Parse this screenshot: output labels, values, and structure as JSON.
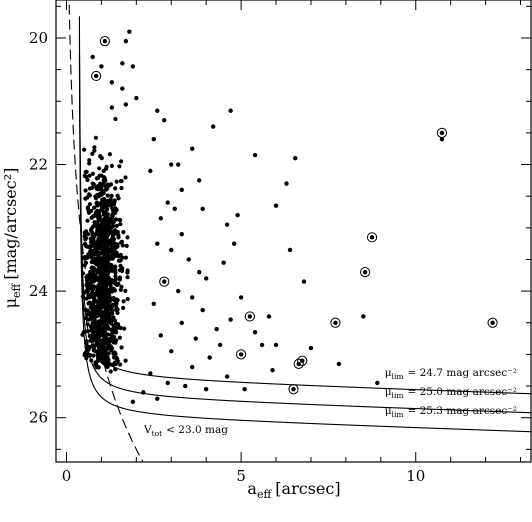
{
  "chart_data": {
    "type": "scatter",
    "title": "",
    "xlabel": "a",
    "xlabel_sub": "eff",
    "xlabel_unit": "[arcsec]",
    "ylabel": "μ",
    "ylabel_sub": "eff",
    "ylabel_unit": "[mag/arcsec²]",
    "xlim": [
      -0.3,
      13.3
    ],
    "ylim": [
      26.7,
      19.4
    ],
    "y_inverted": true,
    "grid": false,
    "x_major_ticks": [
      0,
      5,
      10
    ],
    "x_tick_labels": [
      "0",
      "5",
      "10"
    ],
    "x_minor_step": 1,
    "y_major_ticks": [
      20,
      22,
      24,
      26
    ],
    "y_tick_labels": [
      "20",
      "22",
      "24",
      "26"
    ],
    "y_minor_step": 0.5,
    "marker_color": "#000000",
    "curves": [
      {
        "style": "solid",
        "kind": "mu_lim",
        "value": 24.7,
        "label": "μ",
        "label_sub": "lim",
        "label_rest": "= 24.7 mag arcsec⁻²"
      },
      {
        "style": "solid",
        "kind": "mu_lim",
        "value": 25.0,
        "label": "μ",
        "label_sub": "lim",
        "label_rest": "= 25.0 mag arcsec⁻²"
      },
      {
        "style": "solid",
        "kind": "mu_lim",
        "value": 25.3,
        "label": "μ",
        "label_sub": "lim",
        "label_rest": "= 25.3 mag arcsec⁻²"
      },
      {
        "style": "dashed",
        "kind": "v_tot",
        "value": 23.0,
        "label": "V",
        "label_sub": "tot",
        "label_rest": "< 23.0 mag"
      }
    ],
    "circled_points": [
      {
        "x": 1.1,
        "y": 20.05
      },
      {
        "x": 0.85,
        "y": 20.6
      },
      {
        "x": 10.75,
        "y": 21.5
      },
      {
        "x": 8.75,
        "y": 23.15
      },
      {
        "x": 8.55,
        "y": 23.7
      },
      {
        "x": 2.8,
        "y": 23.85
      },
      {
        "x": 5.25,
        "y": 24.4
      },
      {
        "x": 7.7,
        "y": 24.5
      },
      {
        "x": 12.2,
        "y": 24.5
      },
      {
        "x": 5.0,
        "y": 25.0
      },
      {
        "x": 6.75,
        "y": 25.1
      },
      {
        "x": 6.65,
        "y": 25.15
      },
      {
        "x": 6.5,
        "y": 25.55
      }
    ],
    "sparse_points": [
      {
        "x": 1.8,
        "y": 19.9
      },
      {
        "x": 1.7,
        "y": 20.05
      },
      {
        "x": 1.6,
        "y": 20.4
      },
      {
        "x": 0.75,
        "y": 20.3
      },
      {
        "x": 1.0,
        "y": 20.45
      },
      {
        "x": 1.9,
        "y": 20.45
      },
      {
        "x": 1.3,
        "y": 20.7
      },
      {
        "x": 1.6,
        "y": 20.8
      },
      {
        "x": 2.0,
        "y": 20.95
      },
      {
        "x": 1.7,
        "y": 21.05
      },
      {
        "x": 1.3,
        "y": 21.1
      },
      {
        "x": 2.6,
        "y": 21.15
      },
      {
        "x": 4.7,
        "y": 21.15
      },
      {
        "x": 2.8,
        "y": 21.3
      },
      {
        "x": 4.2,
        "y": 21.4
      },
      {
        "x": 10.75,
        "y": 21.6
      },
      {
        "x": 2.5,
        "y": 21.6
      },
      {
        "x": 3.6,
        "y": 21.75
      },
      {
        "x": 5.4,
        "y": 21.85
      },
      {
        "x": 6.55,
        "y": 21.9
      },
      {
        "x": 3.2,
        "y": 22.0
      },
      {
        "x": 3.0,
        "y": 22.0
      },
      {
        "x": 2.4,
        "y": 22.1
      },
      {
        "x": 3.8,
        "y": 22.25
      },
      {
        "x": 6.3,
        "y": 22.3
      },
      {
        "x": 3.3,
        "y": 22.4
      },
      {
        "x": 2.9,
        "y": 22.6
      },
      {
        "x": 3.1,
        "y": 22.7
      },
      {
        "x": 3.9,
        "y": 22.7
      },
      {
        "x": 6.0,
        "y": 22.65
      },
      {
        "x": 2.7,
        "y": 22.85
      },
      {
        "x": 4.9,
        "y": 22.8
      },
      {
        "x": 3.3,
        "y": 23.1
      },
      {
        "x": 4.6,
        "y": 22.95
      },
      {
        "x": 2.6,
        "y": 23.25
      },
      {
        "x": 4.8,
        "y": 23.25
      },
      {
        "x": 3.0,
        "y": 23.35
      },
      {
        "x": 6.4,
        "y": 23.35
      },
      {
        "x": 3.5,
        "y": 23.5
      },
      {
        "x": 4.5,
        "y": 23.55
      },
      {
        "x": 3.8,
        "y": 23.7
      },
      {
        "x": 4.0,
        "y": 23.8
      },
      {
        "x": 6.8,
        "y": 23.85
      },
      {
        "x": 3.2,
        "y": 24.0
      },
      {
        "x": 3.6,
        "y": 24.1
      },
      {
        "x": 5.0,
        "y": 24.1
      },
      {
        "x": 2.5,
        "y": 24.2
      },
      {
        "x": 3.9,
        "y": 24.3
      },
      {
        "x": 8.5,
        "y": 24.4
      },
      {
        "x": 5.8,
        "y": 24.4
      },
      {
        "x": 4.7,
        "y": 24.45
      },
      {
        "x": 3.3,
        "y": 24.5
      },
      {
        "x": 4.3,
        "y": 24.6
      },
      {
        "x": 5.4,
        "y": 24.65
      },
      {
        "x": 2.7,
        "y": 24.7
      },
      {
        "x": 3.7,
        "y": 24.75
      },
      {
        "x": 6.0,
        "y": 24.85
      },
      {
        "x": 4.4,
        "y": 24.85
      },
      {
        "x": 5.6,
        "y": 24.85
      },
      {
        "x": 7.0,
        "y": 24.9
      },
      {
        "x": 3.0,
        "y": 24.95
      },
      {
        "x": 4.1,
        "y": 25.05
      },
      {
        "x": 7.8,
        "y": 25.15
      },
      {
        "x": 3.6,
        "y": 25.2
      },
      {
        "x": 5.9,
        "y": 25.25
      },
      {
        "x": 2.4,
        "y": 25.3
      },
      {
        "x": 4.6,
        "y": 25.35
      },
      {
        "x": 2.9,
        "y": 25.45
      },
      {
        "x": 8.9,
        "y": 25.45
      },
      {
        "x": 3.4,
        "y": 25.5
      },
      {
        "x": 5.1,
        "y": 25.55
      },
      {
        "x": 2.2,
        "y": 25.6
      },
      {
        "x": 4.0,
        "y": 25.55
      },
      {
        "x": 2.6,
        "y": 25.7
      },
      {
        "x": 1.9,
        "y": 25.75
      }
    ],
    "dense_cloud": {
      "count": 1100,
      "x_range": [
        0.45,
        2.3
      ],
      "y_range": [
        21.2,
        25.7
      ],
      "x_peak": 0.9,
      "y_peak": 23.8
    }
  }
}
